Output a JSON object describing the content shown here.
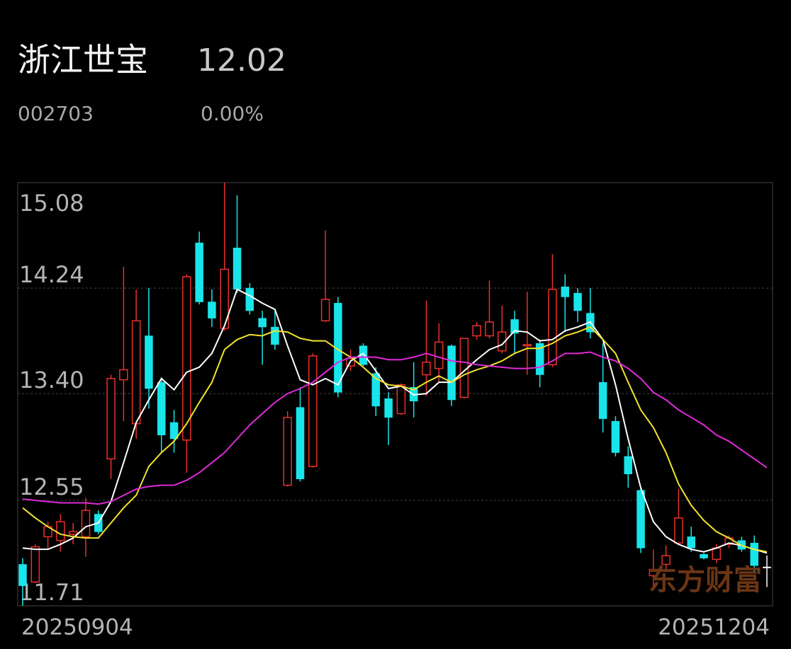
{
  "header": {
    "name": "浙江世宝",
    "price": "12.02",
    "code": "002703",
    "change": "0.00%"
  },
  "watermark": "东方财富",
  "chart_data": {
    "type": "candlestick",
    "categories": [
      "20250904",
      null,
      null,
      null,
      null,
      null,
      null,
      null,
      null,
      null,
      null,
      null,
      null,
      null,
      null,
      null,
      null,
      null,
      null,
      null,
      null,
      null,
      null,
      null,
      null,
      null,
      null,
      null,
      null,
      null,
      null,
      null,
      null,
      null,
      null,
      null,
      null,
      null,
      null,
      null,
      null,
      null,
      null,
      null,
      null,
      null,
      null,
      null,
      null,
      null,
      null,
      null,
      null,
      null,
      null,
      null,
      null,
      null,
      null,
      "20251204"
    ],
    "open": [
      12.04,
      11.9,
      12.26,
      12.23,
      12.28,
      12.26,
      12.44,
      12.88,
      13.51,
      13.16,
      13.86,
      13.49,
      13.17,
      13.03,
      14.6,
      14.13,
      13.92,
      14.56,
      14.24,
      14.0,
      13.93,
      12.67,
      13.29,
      12.82,
      13.98,
      14.12,
      13.62,
      13.78,
      13.56,
      13.36,
      13.24,
      13.45,
      13.55,
      13.6,
      13.78,
      13.37,
      13.86,
      13.86,
      13.74,
      13.99,
      13.78,
      13.8,
      13.63,
      14.25,
      14.2,
      14.04,
      13.49,
      13.18,
      12.9,
      12.63,
      11.95,
      12.04,
      12.21,
      12.26,
      12.12,
      12.08,
      12.2,
      12.23,
      12.21,
      12.02
    ],
    "high": [
      12.09,
      12.2,
      12.38,
      12.44,
      12.37,
      12.57,
      12.47,
      13.55,
      14.41,
      14.23,
      14.24,
      13.53,
      13.27,
      14.35,
      14.69,
      14.23,
      15.08,
      14.98,
      14.28,
      14.06,
      14.06,
      13.26,
      13.45,
      13.72,
      14.7,
      14.17,
      13.75,
      13.8,
      13.61,
      13.41,
      13.48,
      13.65,
      14.14,
      13.96,
      13.79,
      13.84,
      13.97,
      14.3,
      14.1,
      14.06,
      14.21,
      13.83,
      14.51,
      14.35,
      14.24,
      14.24,
      13.8,
      13.22,
      12.98,
      12.65,
      12.16,
      12.19,
      12.64,
      12.34,
      12.13,
      12.2,
      12.27,
      12.26,
      12.27,
      12.11
    ],
    "low": [
      11.71,
      11.89,
      12.16,
      12.14,
      12.2,
      12.1,
      12.28,
      12.72,
      13.18,
      13.04,
      13.28,
      12.93,
      12.93,
      12.77,
      14.11,
      13.93,
      13.9,
      14.2,
      14.03,
      13.63,
      13.75,
      12.66,
      12.7,
      12.81,
      13.97,
      13.37,
      13.58,
      13.62,
      13.22,
      12.99,
      13.23,
      13.21,
      13.38,
      13.49,
      13.3,
      13.36,
      13.83,
      13.84,
      13.72,
      13.72,
      13.55,
      13.45,
      13.61,
      13.89,
      13.97,
      13.84,
      13.09,
      12.9,
      12.65,
      12.13,
      11.86,
      11.98,
      12.2,
      12.14,
      12.08,
      12.05,
      12.17,
      12.14,
      11.98,
      11.86
    ],
    "close": [
      11.87,
      12.18,
      12.34,
      12.38,
      12.3,
      12.47,
      12.3,
      13.52,
      13.59,
      13.98,
      13.44,
      13.07,
      13.04,
      14.33,
      14.13,
      14.0,
      14.39,
      14.23,
      14.06,
      13.93,
      13.79,
      13.21,
      12.72,
      13.7,
      14.15,
      13.41,
      13.68,
      13.63,
      13.3,
      13.21,
      13.47,
      13.34,
      13.65,
      13.81,
      13.35,
      13.84,
      13.94,
      13.97,
      13.89,
      13.88,
      13.79,
      13.55,
      14.23,
      14.17,
      14.06,
      13.89,
      13.2,
      12.93,
      12.76,
      12.17,
      12.0,
      12.11,
      12.41,
      12.17,
      12.09,
      12.17,
      12.25,
      12.16,
      12.03,
      12.02
    ],
    "up_color": "#e8302a",
    "down_color": "#18e5ea",
    "flat_color": "#ffffff",
    "lines": [
      {
        "color": "#ffffff",
        "values": [
          12.17,
          12.16,
          12.16,
          12.2,
          12.25,
          12.34,
          12.37,
          12.54,
          12.85,
          13.17,
          13.35,
          13.52,
          13.43,
          13.57,
          13.61,
          13.72,
          13.94,
          14.23,
          14.18,
          14.12,
          14.07,
          13.78,
          13.51,
          13.47,
          13.52,
          13.47,
          13.66,
          13.72,
          13.58,
          13.44,
          13.46,
          13.39,
          13.4,
          13.49,
          13.49,
          13.58,
          13.67,
          13.75,
          13.79,
          13.9,
          13.89,
          13.82,
          13.83,
          13.9,
          13.93,
          13.97,
          13.83,
          13.47,
          13.04,
          12.65,
          12.38,
          12.26,
          12.2,
          12.16,
          12.14,
          12.17,
          12.21,
          12.19,
          12.16,
          12.13
        ]
      },
      {
        "color": "#f2e22c",
        "values": [
          12.49,
          12.41,
          12.34,
          12.28,
          12.26,
          12.25,
          12.25,
          12.37,
          12.49,
          12.59,
          12.82,
          12.93,
          13.02,
          13.16,
          13.33,
          13.49,
          13.75,
          13.83,
          13.87,
          13.86,
          13.9,
          13.89,
          13.84,
          13.82,
          13.82,
          13.75,
          13.69,
          13.61,
          13.52,
          13.47,
          13.46,
          13.43,
          13.49,
          13.54,
          13.49,
          13.55,
          13.59,
          13.62,
          13.66,
          13.72,
          13.76,
          13.76,
          13.8,
          13.86,
          13.89,
          13.93,
          13.83,
          13.72,
          13.49,
          13.27,
          13.13,
          12.93,
          12.68,
          12.51,
          12.39,
          12.3,
          12.25,
          12.19,
          12.16,
          12.14
        ]
      },
      {
        "color": "#e02ad8",
        "values": [
          12.56,
          12.55,
          12.54,
          12.53,
          12.53,
          12.53,
          12.52,
          12.54,
          12.59,
          12.64,
          12.66,
          12.67,
          12.67,
          12.71,
          12.77,
          12.85,
          12.93,
          13.04,
          13.15,
          13.24,
          13.33,
          13.4,
          13.44,
          13.49,
          13.57,
          13.65,
          13.69,
          13.69,
          13.69,
          13.67,
          13.67,
          13.69,
          13.72,
          13.69,
          13.66,
          13.65,
          13.63,
          13.62,
          13.61,
          13.6,
          13.6,
          13.61,
          13.66,
          13.72,
          13.72,
          13.73,
          13.69,
          13.66,
          13.6,
          13.52,
          13.41,
          13.35,
          13.27,
          13.21,
          13.15,
          13.07,
          13.02,
          12.95,
          12.88,
          12.81
        ]
      }
    ],
    "ylim": [
      11.71,
      15.08
    ],
    "yticks": [
      11.71,
      12.55,
      {
        "value": 13.4,
        "label": "13.40"
      },
      14.24,
      15.08
    ],
    "grid": true
  }
}
